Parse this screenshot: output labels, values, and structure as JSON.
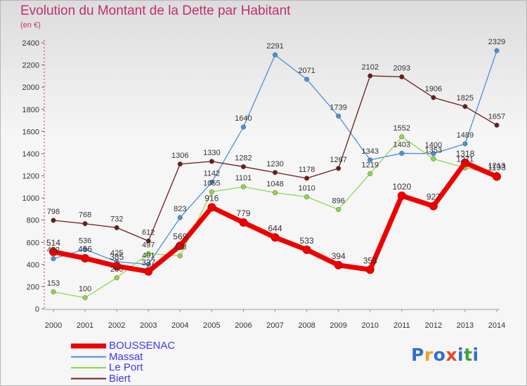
{
  "title": "Evolution du Montant de la Dette par Habitant",
  "subtitle": "(en €)",
  "logo": "Proxiti",
  "chart_data": {
    "type": "line",
    "x": [
      "2000",
      "2001",
      "2002",
      "2003",
      "2004",
      "2005",
      "2006",
      "2007",
      "2008",
      "2009",
      "2010",
      "2011",
      "2012",
      "2013",
      "2014"
    ],
    "ylim": [
      0,
      2400
    ],
    "yticks": [
      0,
      200,
      400,
      600,
      800,
      1000,
      1200,
      1400,
      1600,
      1800,
      2000,
      2200,
      2400
    ],
    "grid": false,
    "legend_position": "bottom-left",
    "series": [
      {
        "name": "BOUSSENAC",
        "color": "#ee0000",
        "values": [
          514,
          456,
          385,
          337,
          569,
          916,
          779,
          644,
          533,
          394,
          353,
          1020,
          927,
          1318,
          1193
        ]
      },
      {
        "name": "Massat",
        "color": "#4a90d9",
        "values": [
          452,
          536,
          425,
          401,
          823,
          1142,
          1640,
          2291,
          2071,
          1739,
          1343,
          1403,
          1400,
          1489,
          2329
        ]
      },
      {
        "name": "Le Port",
        "color": "#8fd64a",
        "values": [
          153,
          100,
          280,
          497,
          478,
          1055,
          1101,
          1048,
          1010,
          896,
          1219,
          1552,
          1353,
          1271,
          1213
        ]
      },
      {
        "name": "Biert",
        "color": "#6e1a1a",
        "values": [
          798,
          768,
          732,
          612,
          1306,
          1330,
          1282,
          1230,
          1178,
          1267,
          2102,
          2093,
          1906,
          1825,
          1657
        ]
      }
    ]
  }
}
